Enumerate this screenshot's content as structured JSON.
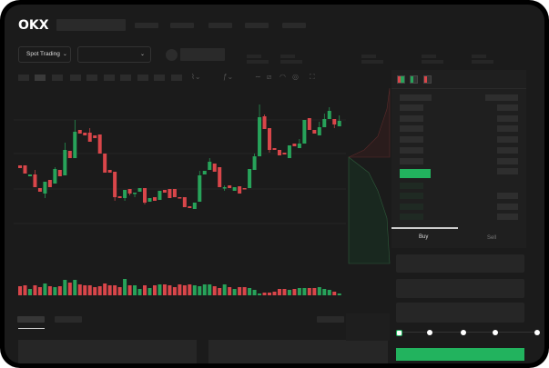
{
  "logo": "OKX",
  "header": {
    "pair_selector": "Spot Trading"
  },
  "orderbook": {
    "icons": [
      "orderbook-both-icon",
      "orderbook-buy-icon",
      "orderbook-sell-icon"
    ],
    "highlight_color": "#22b35e"
  },
  "trade": {
    "tabs": [
      "Buy",
      "Sell"
    ],
    "active_tab": "Buy",
    "slider_percent": 0,
    "slider_steps": [
      0,
      25,
      50,
      75,
      100
    ],
    "button_color": "#22b35e"
  },
  "colors": {
    "up": "#27a35a",
    "down": "#d9464a",
    "background": "#1b1b1b"
  },
  "chart_data": {
    "type": "candlestick",
    "candles": [
      [
        118,
        115,
        118,
        115
      ],
      [
        118,
        109,
        118,
        109
      ],
      [
        106,
        108,
        108,
        106
      ],
      [
        108,
        94,
        113,
        94
      ],
      [
        93,
        89,
        93,
        89
      ],
      [
        87,
        100,
        100,
        82
      ],
      [
        102,
        94,
        102,
        94
      ],
      [
        98,
        114,
        116,
        98
      ],
      [
        113,
        106,
        113,
        106
      ],
      [
        107,
        135,
        143,
        107
      ],
      [
        134,
        126,
        134,
        126
      ],
      [
        126,
        155,
        168,
        126
      ],
      [
        157,
        153,
        157,
        153
      ],
      [
        154,
        151,
        154,
        151
      ],
      [
        154,
        144,
        159,
        144
      ],
      [
        151,
        148,
        151,
        148
      ],
      [
        152,
        131,
        152,
        131
      ],
      [
        131,
        110,
        131,
        110
      ],
      [
        113,
        110,
        113,
        110
      ],
      [
        111,
        83,
        111,
        79
      ],
      [
        84,
        82,
        84,
        82
      ],
      [
        82,
        91,
        91,
        79
      ],
      [
        92,
        87,
        92,
        85
      ],
      [
        87,
        88,
        88,
        83
      ],
      [
        89,
        93,
        93,
        89
      ],
      [
        93,
        77,
        93,
        75
      ],
      [
        78,
        82,
        82,
        78
      ],
      [
        83,
        79,
        83,
        79
      ],
      [
        80,
        90,
        90,
        80
      ],
      [
        91,
        88,
        91,
        88
      ],
      [
        92,
        82,
        92,
        82
      ],
      [
        92,
        83,
        92,
        83
      ],
      [
        83,
        82,
        83,
        82
      ],
      [
        83,
        72,
        83,
        72
      ],
      [
        73,
        71,
        73,
        71
      ],
      [
        70,
        77,
        77,
        70
      ],
      [
        78,
        107,
        112,
        78
      ],
      [
        108,
        112,
        112,
        108
      ],
      [
        113,
        122,
        126,
        113
      ],
      [
        120,
        111,
        120,
        111
      ],
      [
        116,
        94,
        116,
        94
      ],
      [
        93,
        94,
        96,
        90
      ],
      [
        96,
        93,
        96,
        93
      ],
      [
        90,
        94,
        94,
        90
      ],
      [
        95,
        87,
        95,
        87
      ],
      [
        93,
        92,
        93,
        92
      ],
      [
        93,
        114,
        114,
        93
      ],
      [
        113,
        128,
        131,
        113
      ],
      [
        128,
        171,
        185,
        128
      ],
      [
        172,
        158,
        174,
        158
      ],
      [
        159,
        135,
        159,
        132
      ],
      [
        137,
        135,
        137,
        135
      ],
      [
        135,
        129,
        135,
        129
      ],
      [
        132,
        130,
        132,
        130
      ],
      [
        126,
        140,
        140,
        126
      ],
      [
        142,
        139,
        142,
        139
      ],
      [
        137,
        142,
        147,
        137
      ],
      [
        142,
        168,
        168,
        142
      ],
      [
        170,
        157,
        170,
        157
      ],
      [
        157,
        153,
        157,
        153
      ],
      [
        151,
        160,
        166,
        151
      ],
      [
        160,
        169,
        175,
        160
      ],
      [
        169,
        178,
        182,
        169
      ],
      [
        169,
        163,
        169,
        159
      ],
      [
        161,
        167,
        173,
        161
      ]
    ],
    "volume": [
      10,
      11,
      7,
      11,
      9,
      13,
      10,
      9,
      10,
      17,
      14,
      17,
      12,
      11,
      11,
      9,
      10,
      13,
      11,
      11,
      9,
      18,
      11,
      11,
      7,
      11,
      8,
      11,
      12,
      12,
      11,
      9,
      12,
      11,
      12,
      11,
      10,
      12,
      12,
      10,
      8,
      12,
      9,
      7,
      9,
      9,
      8,
      6,
      2,
      3,
      3,
      4,
      7,
      7,
      6,
      7,
      8,
      8,
      8,
      8,
      9,
      7,
      6,
      4,
      2
    ]
  }
}
